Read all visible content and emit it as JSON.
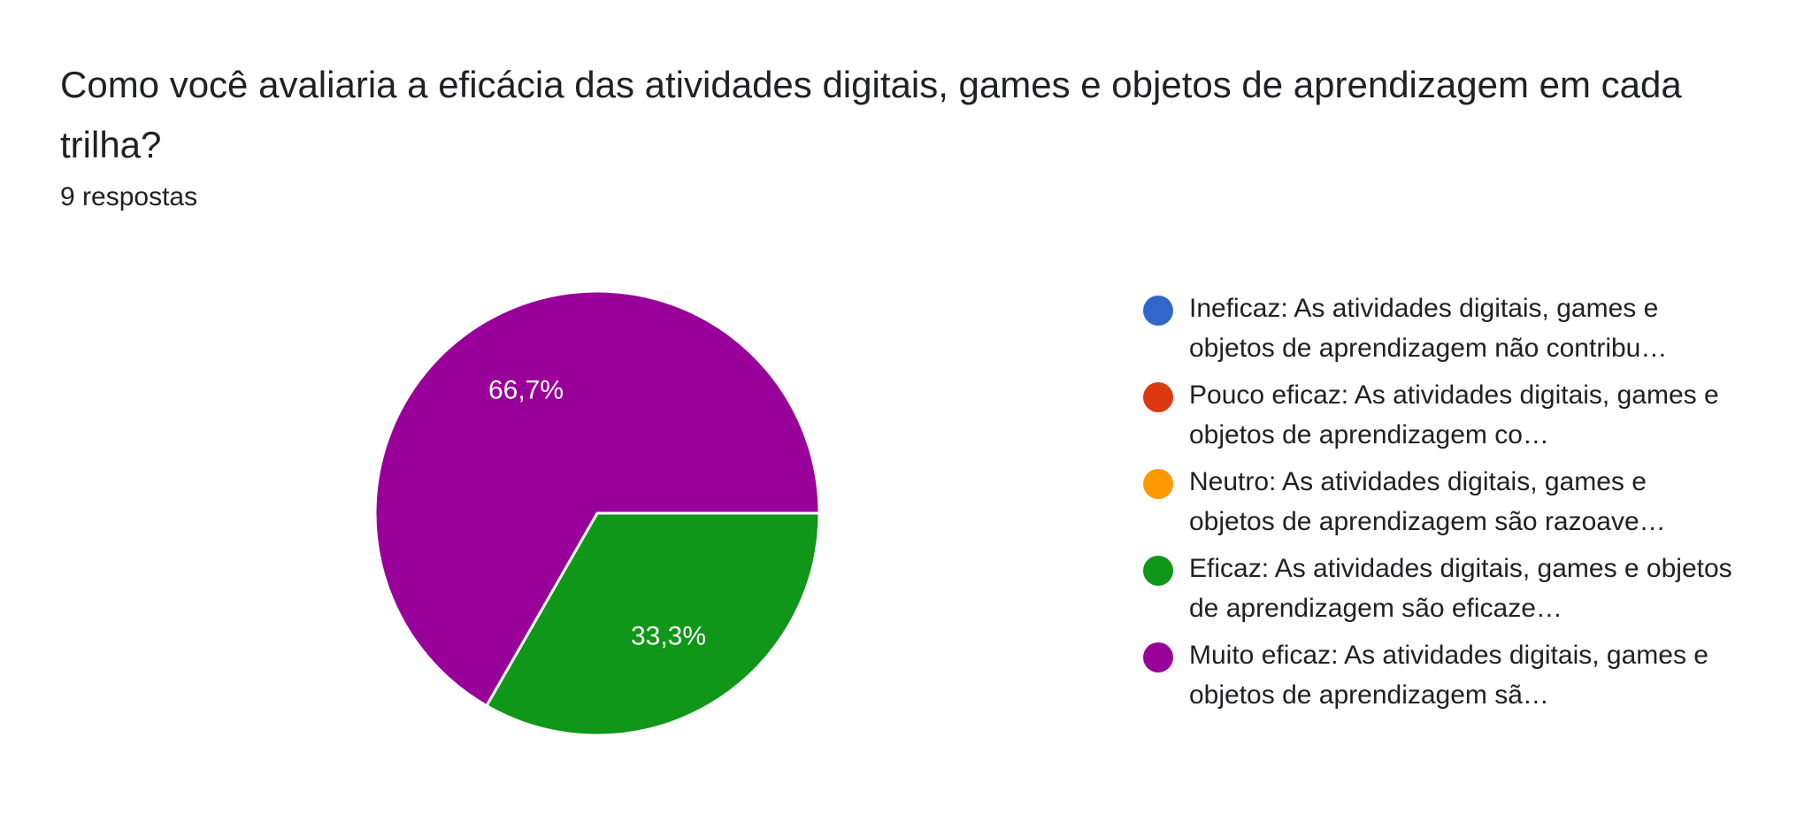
{
  "question": {
    "title": "Como você avaliaria a eficácia das atividades digitais, games e objetos de aprendizagem em cada trilha?",
    "responses": "9 respostas"
  },
  "chart_data": {
    "type": "pie",
    "categories": [
      "Ineficaz: As atividades digitais, games e objetos de aprendizagem não contribu…",
      "Pouco eficaz: As atividades digitais, games e objetos de aprendizagem co…",
      "Neutro: As atividades digitais, games e objetos de aprendizagem são razoave…",
      "Eficaz: As atividades digitais, games e objetos de aprendizagem são eficaze…",
      "Muito eficaz: As atividades digitais, games e objetos de aprendizagem sã…"
    ],
    "values": [
      0,
      0,
      0,
      33.3,
      66.7
    ],
    "slice_labels": [
      "",
      "",
      "",
      "33,3%",
      "66,7%"
    ],
    "colors": [
      "#3366cc",
      "#dc3912",
      "#ff9900",
      "#109618",
      "#990099"
    ],
    "legend": "right"
  }
}
